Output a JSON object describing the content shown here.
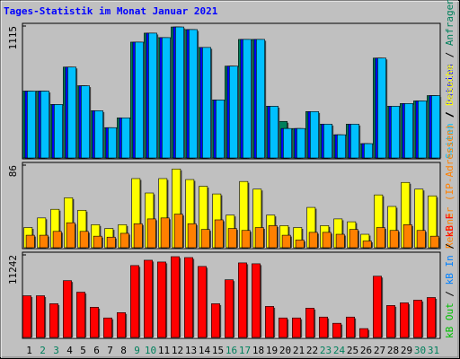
{
  "chart_data": [
    {
      "type": "bar",
      "title": "Tages-Statistik im Monat Januar 2021",
      "ylim": [
        0,
        1115
      ],
      "ylabel_tick": 1115,
      "legend_separator": " / ",
      "series": [
        {
          "name": "Anfragen",
          "color": "#00805c",
          "values": [
            565,
            565,
            452,
            768,
            610,
            399,
            256,
            339,
            979,
            1055,
            1017,
            1107,
            1085,
            934,
            490,
            776,
            1002,
            1002,
            437,
            309,
            249,
            392,
            286,
            196,
            286,
            121,
            844,
            437,
            460,
            482,
            527
          ]
        },
        {
          "name": "Dateien",
          "color": "#0000ff",
          "values": [
            565,
            565,
            452,
            768,
            610,
            399,
            256,
            339,
            979,
            1055,
            1017,
            1107,
            1085,
            934,
            490,
            776,
            1002,
            1002,
            437,
            249,
            249,
            392,
            286,
            196,
            286,
            121,
            844,
            437,
            460,
            482,
            527
          ]
        },
        {
          "name": "Seiten",
          "color": "#00c0ff",
          "values": [
            565,
            565,
            452,
            768,
            610,
            399,
            256,
            339,
            979,
            1055,
            1017,
            1107,
            1085,
            934,
            490,
            776,
            1002,
            1002,
            437,
            249,
            249,
            392,
            286,
            196,
            286,
            121,
            844,
            437,
            460,
            482,
            527
          ]
        }
      ]
    },
    {
      "type": "bar",
      "ylim": [
        0,
        86
      ],
      "ylabel_tick": 86,
      "legend_separator": " / ",
      "series": [
        {
          "name": "Besuche",
          "color": "#ffff00",
          "values": [
            21,
            31,
            40,
            52,
            39,
            24,
            20,
            24,
            72,
            57,
            72,
            82,
            71,
            64,
            56,
            34,
            69,
            61,
            34,
            23,
            21,
            42,
            23,
            30,
            27,
            14,
            55,
            43,
            68,
            61,
            54
          ]
        },
        {
          "name": "Rechner (IP-Adressen)",
          "color": "#ff8000",
          "values": [
            13,
            13,
            17,
            26,
            17,
            12,
            11,
            15,
            25,
            30,
            31,
            35,
            25,
            19,
            29,
            20,
            18,
            21,
            23,
            13,
            8,
            16,
            16,
            14,
            19,
            7,
            21,
            18,
            24,
            18,
            12
          ]
        }
      ]
    },
    {
      "type": "bar",
      "ylim": [
        0,
        11242
      ],
      "ylabel_tick": 11242,
      "legend_separator": " / ",
      "categories": [
        "1",
        "2",
        "3",
        "4",
        "5",
        "6",
        "7",
        "8",
        "9",
        "10",
        "11",
        "12",
        "13",
        "14",
        "15",
        "16",
        "17",
        "18",
        "19",
        "20",
        "21",
        "22",
        "23",
        "24",
        "25",
        "26",
        "27",
        "28",
        "29",
        "30",
        "31"
      ],
      "category_colors": [
        "#000000",
        "#00805c",
        "#00805c",
        "#000000",
        "#000000",
        "#000000",
        "#000000",
        "#000000",
        "#00805c",
        "#00805c",
        "#000000",
        "#000000",
        "#000000",
        "#000000",
        "#000000",
        "#00805c",
        "#00805c",
        "#000000",
        "#000000",
        "#000000",
        "#000000",
        "#000000",
        "#00805c",
        "#00805c",
        "#000000",
        "#000000",
        "#000000",
        "#000000",
        "#000000",
        "#00805c",
        "#00805c"
      ],
      "series": [
        {
          "name": "kB F",
          "color": "#ff0000",
          "values": [
            5681,
            5681,
            4594,
            7737,
            6165,
            4110,
            2659,
            3385,
            9791,
            10517,
            10275,
            11000,
            10879,
            9671,
            4594,
            7857,
            10154,
            10033,
            4231,
            2659,
            2659,
            3989,
            2780,
            1934,
            2780,
            1209,
            8341,
            4352,
            4714,
            5077,
            5440
          ]
        },
        {
          "name": "kB In",
          "color": "#0080ff",
          "values": [
            null,
            null,
            null,
            null,
            null,
            null,
            null,
            null,
            null,
            null,
            null,
            null,
            null,
            null,
            null,
            null,
            null,
            null,
            null,
            null,
            null,
            null,
            null,
            null,
            null,
            null,
            null,
            null,
            null,
            null,
            null
          ]
        },
        {
          "name": "kB Out",
          "color": "#00c000",
          "values": [
            null,
            null,
            null,
            null,
            null,
            null,
            null,
            null,
            null,
            null,
            null,
            null,
            null,
            null,
            null,
            null,
            null,
            null,
            null,
            null,
            null,
            null,
            null,
            null,
            null,
            null,
            null,
            null,
            null,
            null,
            null
          ]
        }
      ]
    }
  ]
}
